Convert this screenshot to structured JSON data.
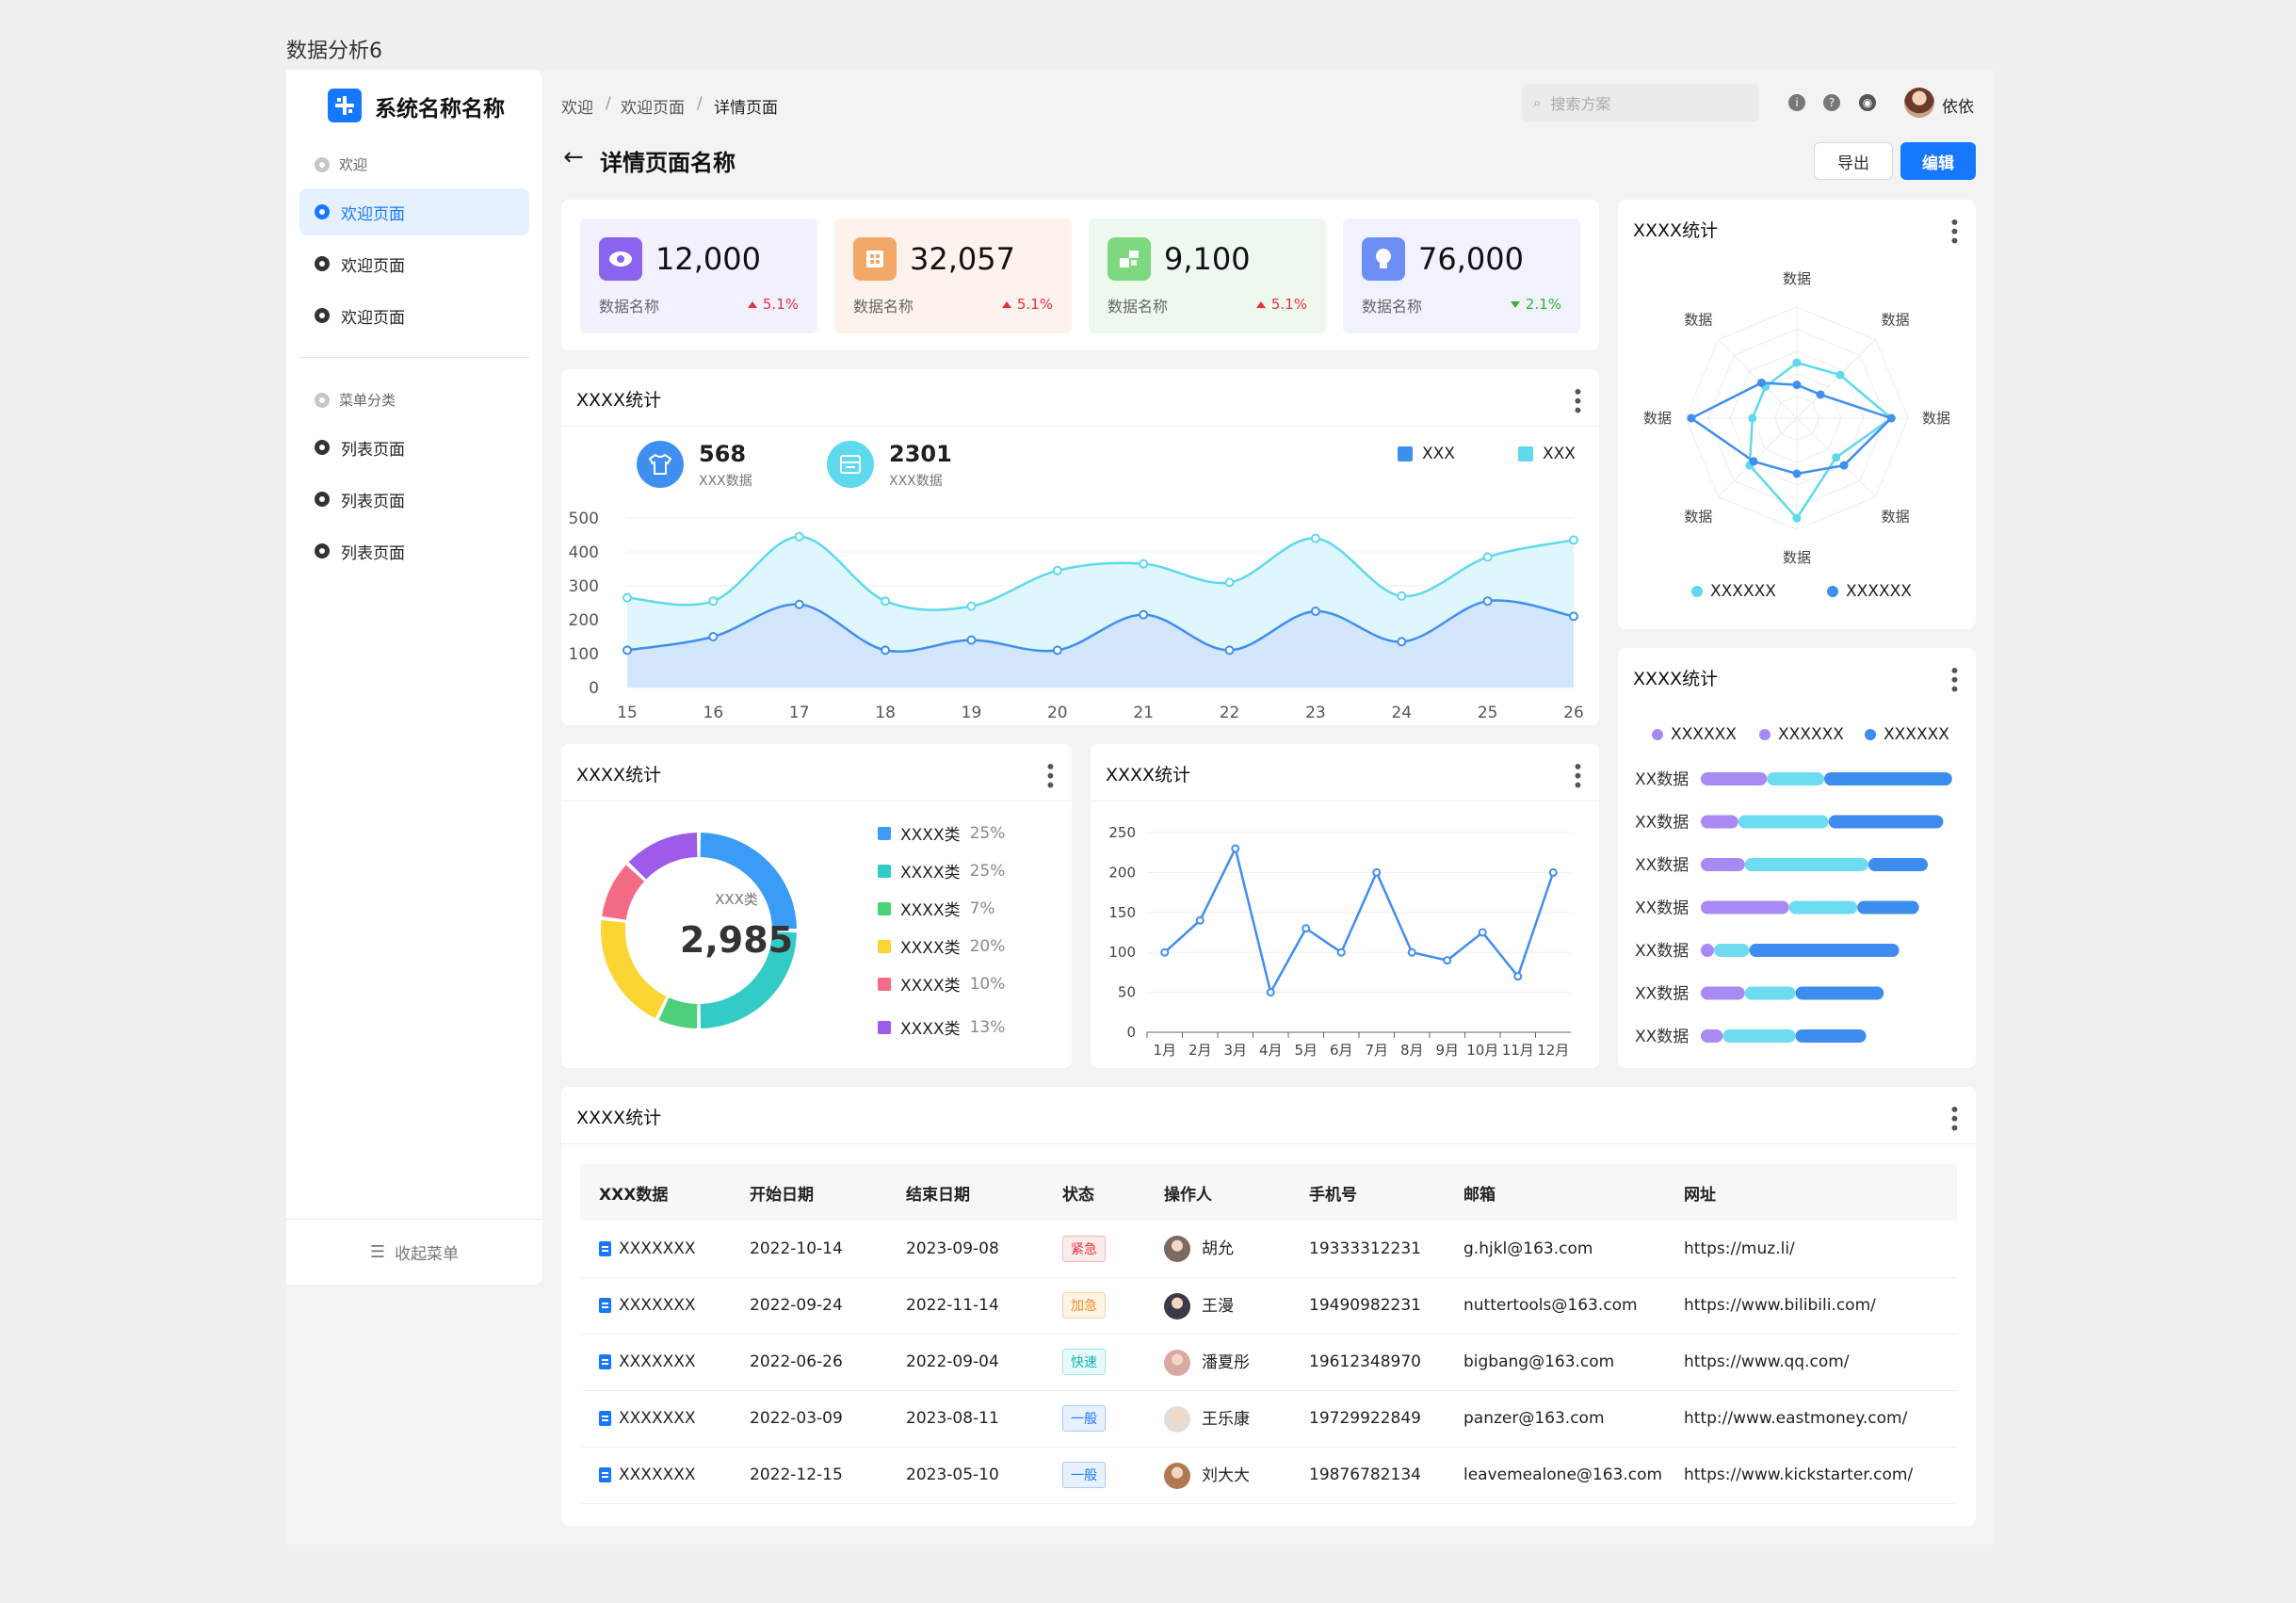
{
  "page_label": "数据分析6",
  "app": {
    "name": "系统名称名称"
  },
  "sidebar": {
    "group1": "欢迎",
    "items1": [
      {
        "label": "欢迎页面"
      },
      {
        "label": "欢迎页面"
      },
      {
        "label": "欢迎页面"
      }
    ],
    "group2": "菜单分类",
    "items2": [
      {
        "label": "列表页面"
      },
      {
        "label": "列表页面"
      },
      {
        "label": "列表页面"
      }
    ],
    "collapse": "收起菜单"
  },
  "header": {
    "breadcrumb": [
      "欢迎",
      "欢迎页面",
      "详情页面"
    ],
    "search_placeholder": "搜索方案",
    "user": "依依"
  },
  "page": {
    "title": "详情页面名称",
    "export": "导出",
    "edit": "编辑"
  },
  "colors": {
    "primary": "#1677ff",
    "cyan": "#5ed9ed",
    "purple": "#9d7cf0",
    "up": "#e5323e",
    "down": "#32b32a"
  },
  "kpis": [
    {
      "value": "12,000",
      "label": "数据名称",
      "change": "5.1%",
      "dir": "up",
      "icon": "eye-icon",
      "bg": "#f3f0ff",
      "iconbg": "#8a63ee"
    },
    {
      "value": "32,057",
      "label": "数据名称",
      "change": "5.1%",
      "dir": "up",
      "icon": "grid-icon",
      "bg": "#fdf3ec",
      "iconbg": "#f4a867"
    },
    {
      "value": "9,100",
      "label": "数据名称",
      "change": "5.1%",
      "dir": "up",
      "icon": "blocks-icon",
      "bg": "#eef8ef",
      "iconbg": "#7dd87f"
    },
    {
      "value": "76,000",
      "label": "数据名称",
      "change": "2.1%",
      "dir": "down",
      "icon": "bulb-icon",
      "bg": "#f0f3ff",
      "iconbg": "#6d8ff5"
    }
  ],
  "area_card": {
    "title": "XXXX统计",
    "stat1": {
      "value": "568",
      "label": "XXX数据"
    },
    "stat2": {
      "value": "2301",
      "label": "XXX数据"
    },
    "legend": [
      "XXX",
      "XXX"
    ]
  },
  "radar_card": {
    "title": "XXXX统计",
    "legend": [
      "XXXXXX",
      "XXXXXX"
    ]
  },
  "donut_card": {
    "title": "XXXX统计",
    "center_label": "XXX类",
    "center_value": "2,985"
  },
  "line_card": {
    "title": "XXXX统计"
  },
  "bar_card": {
    "title": "XXXX统计",
    "legend": [
      "XXXXXX",
      "XXXXXX",
      "XXXXXX"
    ]
  },
  "table_card": {
    "title": "XXXX统计",
    "columns": [
      "XXX数据",
      "开始日期",
      "结束日期",
      "状态",
      "操作人",
      "手机号",
      "邮箱",
      "网址"
    ],
    "rows": [
      {
        "data": "XXXXXXX",
        "start": "2022-10-14",
        "end": "2023-09-08",
        "status": "紧急",
        "status_type": "red",
        "op": "胡允",
        "phone": "19333312231",
        "email": "g.hjkl@163.com",
        "url": "https://muz.li/"
      },
      {
        "data": "XXXXXXX",
        "start": "2022-09-24",
        "end": "2022-11-14",
        "status": "加急",
        "status_type": "orange",
        "op": "王漫",
        "phone": "19490982231",
        "email": "nuttertools@163.com",
        "url": "https://www.bilibili.com/"
      },
      {
        "data": "XXXXXXX",
        "start": "2022-06-26",
        "end": "2022-09-04",
        "status": "快速",
        "status_type": "cyan",
        "op": "潘夏彤",
        "phone": "19612348970",
        "email": "bigbang@163.com",
        "url": "https://www.qq.com/"
      },
      {
        "data": "XXXXXXX",
        "start": "2022-03-09",
        "end": "2023-08-11",
        "status": "一般",
        "status_type": "blue",
        "op": "王乐康",
        "phone": "19729922849",
        "email": "panzer@163.com",
        "url": "http://www.eastmoney.com/"
      },
      {
        "data": "XXXXXXX",
        "start": "2022-12-15",
        "end": "2023-05-10",
        "status": "一般",
        "status_type": "blue",
        "op": "刘大大",
        "phone": "19876782134",
        "email": "leavemealone@163.com",
        "url": "https://www.kickstarter.com/"
      }
    ]
  },
  "chart_data": [
    {
      "type": "area",
      "categories": [
        "15",
        "16",
        "17",
        "18",
        "19",
        "20",
        "21",
        "22",
        "23",
        "24",
        "25",
        "26"
      ],
      "ylim": [
        0,
        500
      ],
      "yticks": [
        0,
        100,
        200,
        300,
        400,
        500
      ],
      "series": [
        {
          "name": "XXX",
          "color": "#3f8ff0",
          "values": [
            110,
            150,
            245,
            110,
            140,
            110,
            215,
            110,
            225,
            135,
            255,
            210
          ]
        },
        {
          "name": "XXX",
          "color": "#5ed9ed",
          "values": [
            265,
            255,
            445,
            255,
            240,
            345,
            365,
            310,
            440,
            270,
            385,
            435
          ]
        }
      ]
    },
    {
      "type": "radar",
      "axes": [
        "数据",
        "数据",
        "数据",
        "数据",
        "数据",
        "数据",
        "数据",
        "数据"
      ],
      "max": 100,
      "series": [
        {
          "name": "XXXXXX",
          "color": "#5ed9ed",
          "values": [
            50,
            55,
            85,
            50,
            90,
            60,
            40,
            40
          ]
        },
        {
          "name": "XXXXXX",
          "color": "#3f8ff0",
          "values": [
            30,
            30,
            85,
            60,
            50,
            55,
            95,
            45
          ]
        }
      ]
    },
    {
      "type": "pie",
      "donut": true,
      "slices": [
        {
          "name": "XXXX类",
          "pct": "25%",
          "value": 25,
          "color": "#3b9cf5"
        },
        {
          "name": "XXXX类",
          "pct": "25%",
          "value": 25,
          "color": "#33cbc6"
        },
        {
          "name": "XXXX类",
          "pct": "7%",
          "value": 7,
          "color": "#4cd07a"
        },
        {
          "name": "XXXX类",
          "pct": "20%",
          "value": 20,
          "color": "#fad534"
        },
        {
          "name": "XXXX类",
          "pct": "10%",
          "value": 10,
          "color": "#f46b86"
        },
        {
          "name": "XXXX类",
          "pct": "13%",
          "value": 13,
          "color": "#9e5bea"
        }
      ]
    },
    {
      "type": "line",
      "categories": [
        "1月",
        "2月",
        "3月",
        "4月",
        "5月",
        "6月",
        "7月",
        "8月",
        "9月",
        "10月",
        "11月",
        "12月"
      ],
      "ylim": [
        0,
        250
      ],
      "yticks": [
        0,
        50,
        100,
        150,
        200,
        250
      ],
      "series": [
        {
          "color": "#3f8ff0",
          "values": [
            100,
            140,
            230,
            50,
            130,
            100,
            200,
            100,
            90,
            125,
            70,
            200
          ]
        }
      ]
    },
    {
      "type": "bar",
      "stacked": true,
      "horizontal": true,
      "categories": [
        "XX数据",
        "XX数据",
        "XX数据",
        "XX数据",
        "XX数据",
        "XX数据",
        "XX数据"
      ],
      "series": [
        {
          "name": "XXXXXX",
          "color": "#a98af5",
          "values": [
            30,
            17,
            20,
            40,
            6,
            20,
            10
          ]
        },
        {
          "name": "XXXXXX",
          "color": "#6edcf0",
          "values": [
            26,
            41,
            56,
            31,
            16,
            23,
            33
          ]
        },
        {
          "name": "XXXXXX",
          "color": "#3d8cf0",
          "values": [
            58,
            52,
            27,
            28,
            68,
            40,
            32
          ]
        }
      ]
    }
  ]
}
